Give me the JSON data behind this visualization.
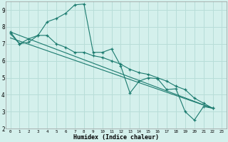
{
  "xlabel": "Humidex (Indice chaleur)",
  "bg_color": "#d4f0ec",
  "grid_color": "#b8ddd8",
  "line_color": "#1a7a6e",
  "xlim": [
    -0.5,
    23.5
  ],
  "ylim": [
    2,
    9.5
  ],
  "line1_x": [
    0,
    1,
    2,
    3,
    4,
    5,
    6,
    7,
    8,
    9,
    10,
    11,
    12,
    13,
    14,
    15,
    16,
    17,
    18,
    19,
    20,
    21,
    22
  ],
  "line1_y": [
    7.7,
    7.0,
    7.3,
    7.5,
    8.3,
    8.5,
    8.8,
    9.3,
    9.35,
    6.5,
    6.5,
    6.7,
    5.7,
    4.1,
    4.8,
    5.0,
    4.95,
    4.3,
    4.35,
    3.0,
    2.5,
    3.3,
    3.2
  ],
  "line2_x": [
    0,
    1,
    2,
    3,
    4,
    5,
    6,
    7,
    8,
    9,
    10,
    11,
    12,
    13,
    14,
    15,
    16,
    17,
    18,
    19,
    20,
    21,
    22
  ],
  "line2_y": [
    7.6,
    7.0,
    7.1,
    7.5,
    7.5,
    7.0,
    6.8,
    6.5,
    6.5,
    6.3,
    6.2,
    6.0,
    5.8,
    5.5,
    5.3,
    5.2,
    5.0,
    4.8,
    4.5,
    4.3,
    3.8,
    3.5,
    3.2
  ],
  "line3_x": [
    0,
    22
  ],
  "line3_y": [
    7.7,
    3.2
  ],
  "line4_x": [
    0,
    22
  ],
  "line4_y": [
    7.35,
    3.2
  ],
  "yticks": [
    2,
    3,
    4,
    5,
    6,
    7,
    8,
    9
  ],
  "xticks": [
    0,
    1,
    2,
    3,
    4,
    5,
    6,
    7,
    8,
    9,
    10,
    11,
    12,
    13,
    14,
    15,
    16,
    17,
    18,
    19,
    20,
    21,
    22,
    23
  ]
}
